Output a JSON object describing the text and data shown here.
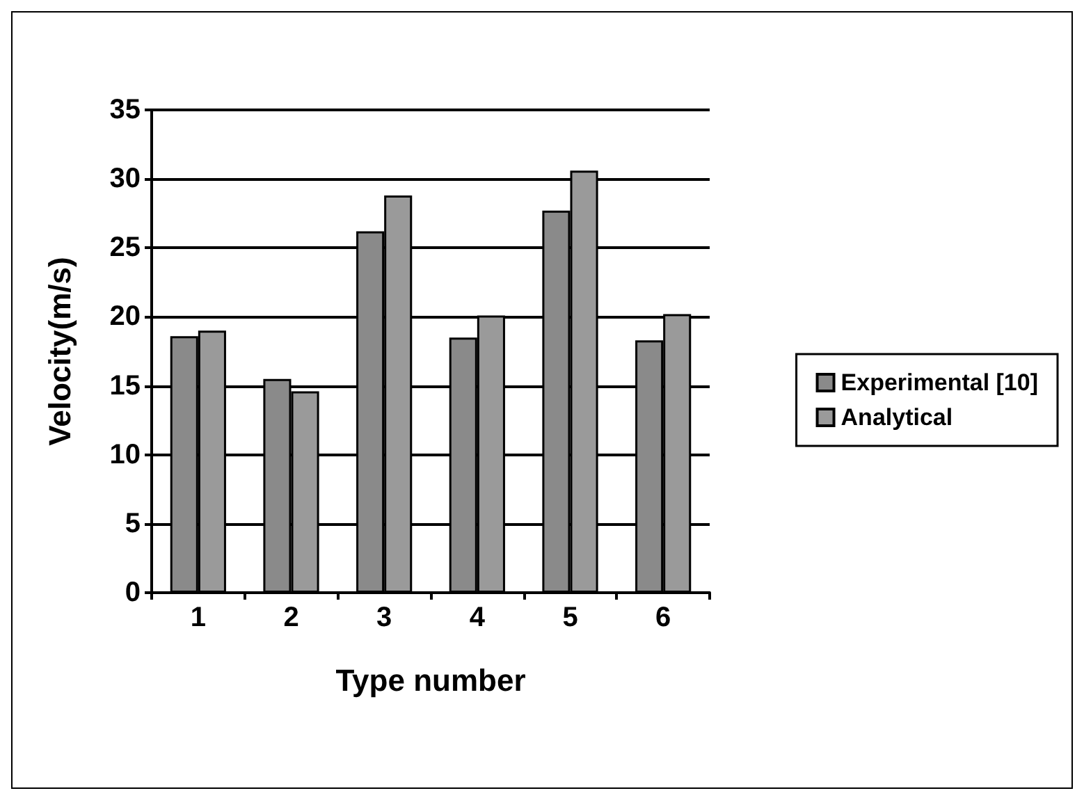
{
  "chart_data": {
    "type": "bar",
    "xlabel": "Type number",
    "ylabel": "Velocity(m/s)",
    "categories": [
      "1",
      "2",
      "3",
      "4",
      "5",
      "6"
    ],
    "series": [
      {
        "name": "Experimental [10]",
        "color": "#8a8a8a",
        "values": [
          18.6,
          15.5,
          26.2,
          18.5,
          27.7,
          18.3
        ]
      },
      {
        "name": "Analytical",
        "color": "#9a9a9a",
        "values": [
          19.0,
          14.6,
          28.8,
          20.1,
          30.6,
          20.2
        ]
      }
    ],
    "ylim": [
      0,
      35
    ],
    "yticks": [
      0,
      5,
      10,
      15,
      20,
      25,
      30,
      35
    ],
    "grid": "y",
    "legend": "right"
  }
}
